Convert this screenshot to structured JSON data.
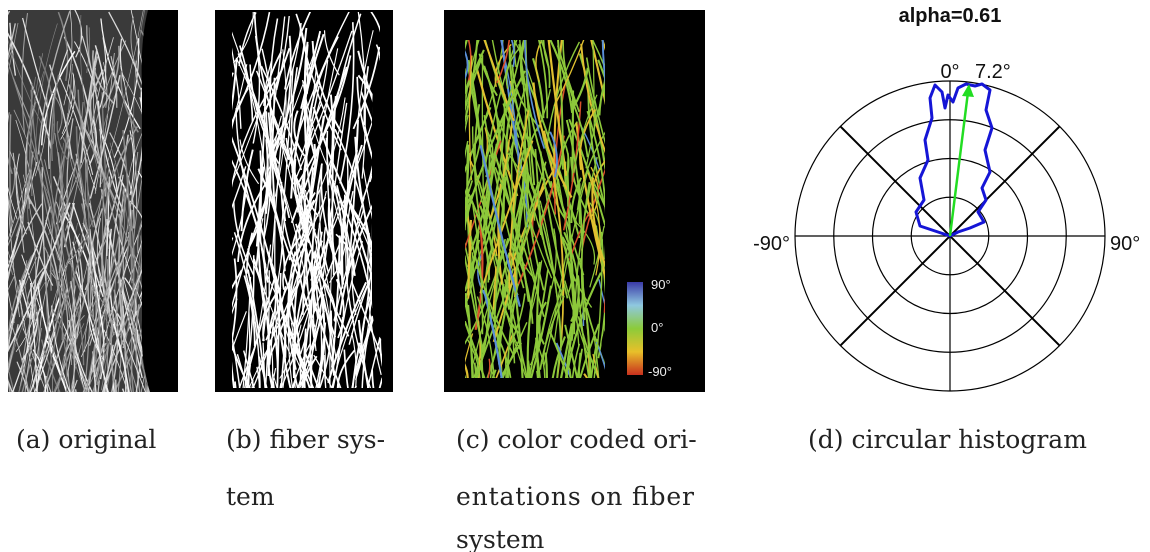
{
  "panels": [
    {
      "caption": [
        "(a) original"
      ]
    },
    {
      "caption": [
        "(b) fiber sys-",
        "tem"
      ]
    },
    {
      "caption": [
        "(c) color coded ori-",
        "entations on fiber",
        "system"
      ],
      "colorbar": [
        "90°",
        "0°",
        "-90°"
      ]
    },
    {
      "caption": [
        "(d) circular histogram"
      ],
      "title": "alpha=0.61",
      "labels": {
        "top": "0°",
        "direction": "7.2°",
        "left": "-90°",
        "right": "90°"
      }
    }
  ]
}
